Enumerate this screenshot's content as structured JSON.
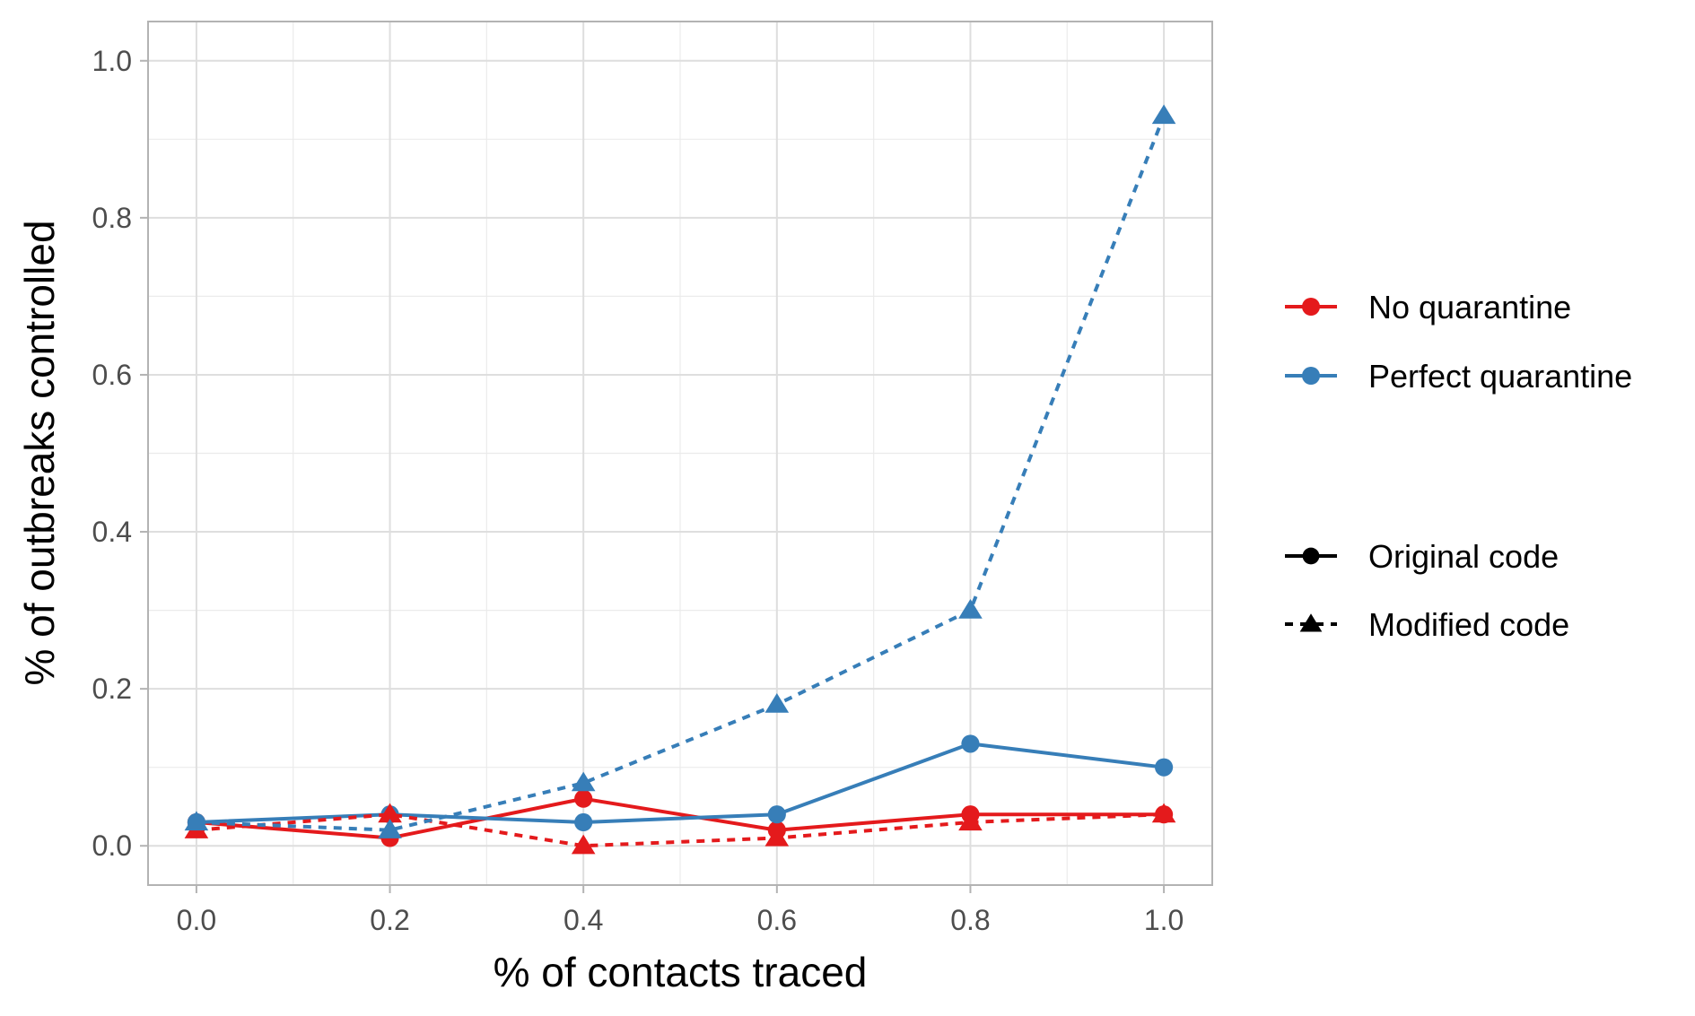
{
  "chart_data": {
    "type": "line",
    "xlabel": "% of contacts traced",
    "ylabel": "% of outbreaks controlled",
    "x": [
      0.0,
      0.2,
      0.4,
      0.6,
      0.8,
      1.0
    ],
    "x_ticks": [
      "0.0",
      "0.2",
      "0.4",
      "0.6",
      "0.8",
      "1.0"
    ],
    "y_ticks": [
      "0.0",
      "0.2",
      "0.4",
      "0.6",
      "0.8",
      "1.0"
    ],
    "xlim": [
      -0.05,
      1.05
    ],
    "ylim": [
      -0.05,
      1.05
    ],
    "grid": true,
    "legend_placement": "right",
    "color_legend": [
      {
        "label": "No quarantine",
        "color": "#e41a1c"
      },
      {
        "label": "Perfect quarantine",
        "color": "#377eb8"
      }
    ],
    "linetype_legend": [
      {
        "label": "Original code",
        "linetype": "solid",
        "marker": "circle"
      },
      {
        "label": "Modified code",
        "linetype": "dashed",
        "marker": "triangle"
      }
    ],
    "series": [
      {
        "quarantine": "No quarantine",
        "code": "Original code",
        "color": "#e41a1c",
        "linetype": "solid",
        "marker": "circle",
        "values": [
          0.03,
          0.01,
          0.06,
          0.02,
          0.04,
          0.04
        ]
      },
      {
        "quarantine": "No quarantine",
        "code": "Modified code",
        "color": "#e41a1c",
        "linetype": "dashed",
        "marker": "triangle",
        "values": [
          0.02,
          0.04,
          0.0,
          0.01,
          0.03,
          0.04
        ]
      },
      {
        "quarantine": "Perfect quarantine",
        "code": "Original code",
        "color": "#377eb8",
        "linetype": "solid",
        "marker": "circle",
        "values": [
          0.03,
          0.04,
          0.03,
          0.04,
          0.13,
          0.1
        ]
      },
      {
        "quarantine": "Perfect quarantine",
        "code": "Modified code",
        "color": "#377eb8",
        "linetype": "dashed",
        "marker": "triangle",
        "values": [
          0.03,
          0.02,
          0.08,
          0.18,
          0.3,
          0.93
        ]
      }
    ]
  }
}
